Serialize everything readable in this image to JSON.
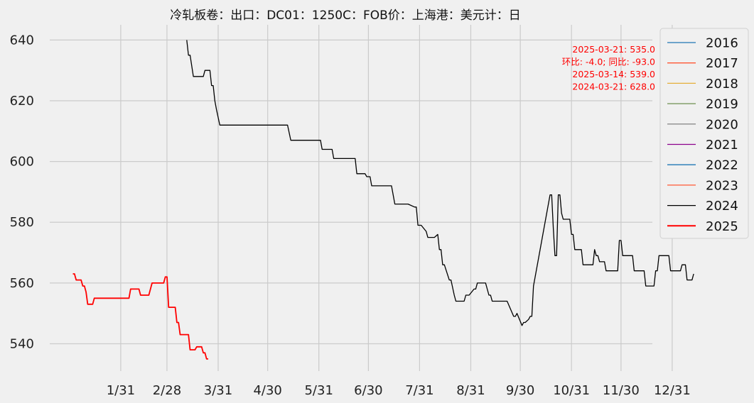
{
  "chart_data": {
    "type": "line",
    "title": "冷轧板卷：出口：DC01：1250C：FOB价：上海港：美元计：日",
    "xlabel": "",
    "ylabel": "",
    "ylim": [
      531,
      645
    ],
    "yticks": [
      540,
      560,
      580,
      600,
      620,
      640
    ],
    "xlim_day": [
      -13,
      352
    ],
    "xticks": [
      {
        "label": "1/31",
        "day": 30
      },
      {
        "label": "2/28",
        "day": 58
      },
      {
        "label": "3/31",
        "day": 89
      },
      {
        "label": "4/30",
        "day": 119
      },
      {
        "label": "5/31",
        "day": 150
      },
      {
        "label": "6/30",
        "day": 180
      },
      {
        "label": "7/31",
        "day": 211
      },
      {
        "label": "8/31",
        "day": 242
      },
      {
        "label": "9/30",
        "day": 272
      },
      {
        "label": "10/31",
        "day": 303
      },
      {
        "label": "11/30",
        "day": 333
      },
      {
        "label": "12/31",
        "day": 364
      }
    ],
    "grid": true,
    "legend_position": "outside-right",
    "annotation": {
      "color": "#ff0000",
      "lines": [
        "2025-03-21: 535.0",
        "环比: -4.0; 同比: -93.0",
        "2025-03-14: 539.0",
        "2024-03-21: 628.0"
      ]
    },
    "series": [
      {
        "name": "2016",
        "color": "#1f77b4",
        "points": []
      },
      {
        "name": "2017",
        "color": "#ff5733",
        "points": []
      },
      {
        "name": "2018",
        "color": "#e5ae38",
        "points": []
      },
      {
        "name": "2019",
        "color": "#6d904f",
        "points": []
      },
      {
        "name": "2020",
        "color": "#8b8b8b",
        "points": []
      },
      {
        "name": "2021",
        "color": "#8b008b",
        "points": []
      },
      {
        "name": "2022",
        "color": "#1f77b4",
        "points": []
      },
      {
        "name": "2023",
        "color": "#ff5733",
        "points": []
      },
      {
        "name": "2024",
        "color": "#000000",
        "width": 1.3,
        "points": [
          [
            70,
            640
          ],
          [
            71,
            635
          ],
          [
            72,
            635
          ],
          [
            74,
            628
          ],
          [
            77,
            628
          ],
          [
            80,
            628
          ],
          [
            81,
            630
          ],
          [
            84,
            630
          ],
          [
            85,
            625
          ],
          [
            86,
            625
          ],
          [
            87,
            620
          ],
          [
            88,
            617
          ],
          [
            90,
            612
          ],
          [
            131,
            612
          ],
          [
            133,
            607
          ],
          [
            151,
            607
          ],
          [
            152,
            604
          ],
          [
            158,
            604
          ],
          [
            159,
            601
          ],
          [
            172,
            601
          ],
          [
            173,
            596
          ],
          [
            178,
            596
          ],
          [
            179,
            595
          ],
          [
            181,
            595
          ],
          [
            182,
            592
          ],
          [
            194,
            592
          ],
          [
            196,
            586
          ],
          [
            204,
            586
          ],
          [
            208,
            585
          ],
          [
            209,
            585
          ],
          [
            210,
            579
          ],
          [
            212,
            579
          ],
          [
            215,
            577
          ],
          [
            216,
            575
          ],
          [
            220,
            575
          ],
          [
            222,
            576
          ],
          [
            223,
            571
          ],
          [
            224,
            571
          ],
          [
            225,
            566
          ],
          [
            226,
            566
          ],
          [
            229,
            561
          ],
          [
            230,
            561
          ],
          [
            232,
            556
          ],
          [
            233,
            554
          ],
          [
            238,
            554
          ],
          [
            239,
            556
          ],
          [
            241,
            556
          ],
          [
            244,
            558
          ],
          [
            245,
            558
          ],
          [
            246,
            560
          ],
          [
            251,
            560
          ],
          [
            253,
            556
          ],
          [
            254,
            556
          ],
          [
            255,
            554
          ],
          [
            264,
            554
          ],
          [
            268,
            549
          ],
          [
            269,
            549
          ],
          [
            270,
            550
          ],
          [
            273,
            546
          ],
          [
            274,
            547
          ],
          [
            275,
            547
          ],
          [
            277,
            548
          ],
          [
            278,
            549
          ],
          [
            279,
            549
          ],
          [
            280,
            559
          ],
          [
            283,
            568
          ],
          [
            287,
            580
          ],
          [
            290,
            589
          ],
          [
            291,
            589
          ],
          [
            292,
            578
          ],
          [
            293,
            569
          ],
          [
            294,
            569
          ],
          [
            295,
            589
          ],
          [
            296,
            589
          ],
          [
            297,
            583
          ],
          [
            298,
            581
          ],
          [
            302,
            581
          ],
          [
            303,
            576
          ],
          [
            304,
            576
          ],
          [
            305,
            571
          ],
          [
            309,
            571
          ],
          [
            310,
            566
          ],
          [
            316,
            566
          ],
          [
            317,
            571
          ],
          [
            318,
            569
          ],
          [
            319,
            569
          ],
          [
            320,
            567
          ],
          [
            323,
            567
          ],
          [
            324,
            564
          ],
          [
            331,
            564
          ],
          [
            332,
            574
          ],
          [
            333,
            574
          ],
          [
            334,
            569
          ],
          [
            340,
            569
          ],
          [
            341,
            564
          ],
          [
            347,
            564
          ],
          [
            348,
            559
          ],
          [
            353,
            559
          ],
          [
            354,
            564
          ],
          [
            355,
            564
          ],
          [
            356,
            569
          ],
          [
            362,
            569
          ],
          [
            363,
            564
          ],
          [
            369,
            564
          ],
          [
            370,
            566
          ],
          [
            372,
            566
          ],
          [
            373,
            561
          ],
          [
            376,
            561
          ],
          [
            377,
            563
          ]
        ]
      },
      {
        "name": "2025",
        "color": "#ff0000",
        "width": 1.8,
        "points": [
          [
            1,
            563
          ],
          [
            2,
            563
          ],
          [
            3,
            561
          ],
          [
            6,
            561
          ],
          [
            7,
            559
          ],
          [
            8,
            559
          ],
          [
            9,
            557
          ],
          [
            10,
            553
          ],
          [
            13,
            553
          ],
          [
            14,
            555
          ],
          [
            35,
            555
          ],
          [
            36,
            558
          ],
          [
            41,
            558
          ],
          [
            42,
            556
          ],
          [
            47,
            556
          ],
          [
            49,
            560
          ],
          [
            56,
            560
          ],
          [
            57,
            562
          ],
          [
            58,
            562
          ],
          [
            59,
            552
          ],
          [
            63,
            552
          ],
          [
            64,
            547
          ],
          [
            65,
            547
          ],
          [
            66,
            543
          ],
          [
            71,
            543
          ],
          [
            72,
            538
          ],
          [
            75,
            538
          ],
          [
            76,
            539
          ],
          [
            79,
            539
          ],
          [
            80,
            537
          ],
          [
            81,
            537
          ],
          [
            82,
            535
          ],
          [
            83,
            535
          ]
        ]
      }
    ]
  }
}
